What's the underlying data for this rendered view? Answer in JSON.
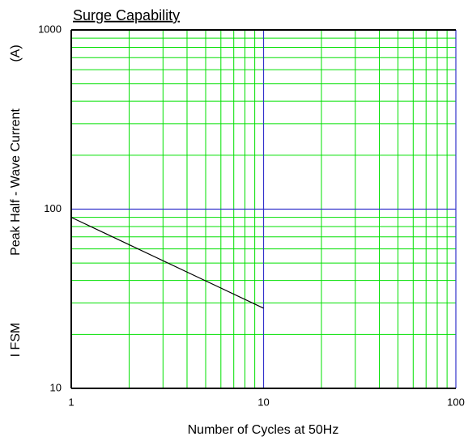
{
  "chart_data": {
    "type": "line",
    "title": "Surge Capability",
    "xlabel": "Number of Cycles at 50Hz",
    "ylabel": [
      "I FSM",
      "Peak Half - Wave Current",
      "(A)"
    ],
    "x": [
      1,
      10
    ],
    "series": [
      {
        "name": "IFSM",
        "color": "#000000",
        "values": [
          90,
          28
        ]
      }
    ],
    "xscale": "log",
    "yscale": "log",
    "xlim": [
      1,
      100
    ],
    "ylim": [
      10,
      1000
    ],
    "xticks": [
      1,
      10,
      100
    ],
    "yticks": [
      10,
      100,
      1000
    ],
    "xminorticks": [
      2,
      3,
      4,
      5,
      6,
      7,
      8,
      9,
      20,
      30,
      40,
      50,
      60,
      70,
      80,
      90
    ],
    "yminorticks": [
      20,
      30,
      40,
      50,
      60,
      70,
      80,
      90,
      200,
      300,
      400,
      500,
      600,
      700,
      800,
      900
    ],
    "grid": true,
    "grid_color": "#00e000",
    "major_grid_color": "#3333cc"
  }
}
